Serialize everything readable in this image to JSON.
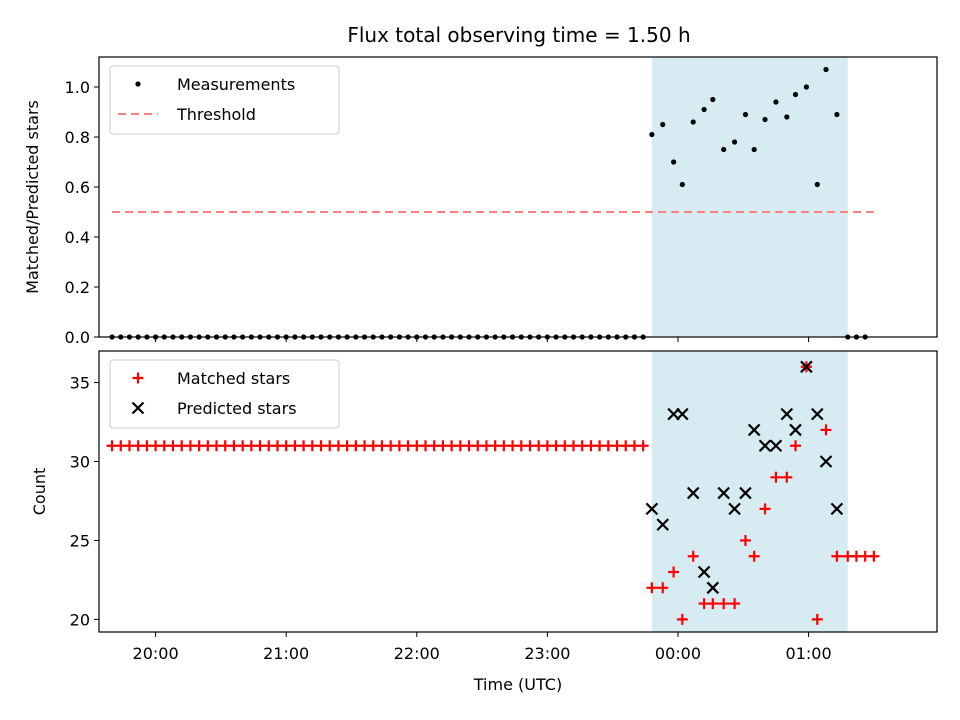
{
  "chart_data": {
    "title": "Flux total observing time = 1.50 h",
    "xlabel": "Time (UTC)",
    "xlim": [
      "19:34",
      "01:59"
    ],
    "xticks": [
      "20:00",
      "21:00",
      "22:00",
      "23:00",
      "00:00",
      "01:00"
    ],
    "highlight": {
      "start": "23:48",
      "end": "01:18",
      "color": "#add8e6"
    },
    "colors": {
      "measurement": "#000000",
      "threshold": "#ff7f7f",
      "matched": "#ff0000",
      "predicted": "#000000"
    },
    "times": [
      "19:40",
      "19:44",
      "19:48",
      "19:52",
      "19:56",
      "20:00",
      "20:04",
      "20:08",
      "20:12",
      "20:16",
      "20:20",
      "20:24",
      "20:28",
      "20:32",
      "20:36",
      "20:40",
      "20:44",
      "20:48",
      "20:52",
      "20:56",
      "21:00",
      "21:04",
      "21:08",
      "21:12",
      "21:16",
      "21:20",
      "21:24",
      "21:28",
      "21:32",
      "21:36",
      "21:40",
      "21:44",
      "21:48",
      "21:52",
      "21:56",
      "22:00",
      "22:04",
      "22:08",
      "22:12",
      "22:16",
      "22:20",
      "22:24",
      "22:28",
      "22:32",
      "22:36",
      "22:40",
      "22:44",
      "22:48",
      "22:52",
      "22:56",
      "23:00",
      "23:04",
      "23:08",
      "23:12",
      "23:16",
      "23:20",
      "23:24",
      "23:28",
      "23:32",
      "23:36",
      "23:40",
      "23:44",
      "23:48",
      "23:53",
      "23:58",
      "00:02",
      "00:07",
      "00:12",
      "00:16",
      "00:21",
      "00:26",
      "00:31",
      "00:35",
      "00:40",
      "00:45",
      "00:50",
      "00:54",
      "00:59",
      "01:04",
      "01:08",
      "01:13",
      "01:18",
      "01:22",
      "01:26",
      "01:30"
    ],
    "panels": [
      {
        "type": "scatter",
        "ylabel": "Matched/Predicted stars",
        "ylim": [
          0.0,
          1.12
        ],
        "yticks": [
          "0.0",
          "0.2",
          "0.4",
          "0.6",
          "0.8",
          "1.0"
        ],
        "legend_position": "upper-left",
        "series": [
          {
            "name": "Measurements",
            "marker": "dot",
            "values": [
              0,
              0,
              0,
              0,
              0,
              0,
              0,
              0,
              0,
              0,
              0,
              0,
              0,
              0,
              0,
              0,
              0,
              0,
              0,
              0,
              0,
              0,
              0,
              0,
              0,
              0,
              0,
              0,
              0,
              0,
              0,
              0,
              0,
              0,
              0,
              0,
              0,
              0,
              0,
              0,
              0,
              0,
              0,
              0,
              0,
              0,
              0,
              0,
              0,
              0,
              0,
              0,
              0,
              0,
              0,
              0,
              0,
              0,
              0,
              0,
              0,
              0,
              0.81,
              0.85,
              0.7,
              0.61,
              0.86,
              0.91,
              0.95,
              0.75,
              0.78,
              0.89,
              0.75,
              0.87,
              0.94,
              0.88,
              0.97,
              1.0,
              0.61,
              1.07,
              0.89,
              0,
              0,
              0,
              null
            ]
          },
          {
            "name": "Threshold",
            "style": "dashed",
            "value": 0.5,
            "x_range": [
              "19:40",
              "01:30"
            ]
          }
        ]
      },
      {
        "type": "scatter",
        "ylabel": "Count",
        "ylim": [
          19.2,
          37.0
        ],
        "yticks": [
          "20",
          "25",
          "30",
          "35"
        ],
        "legend_position": "upper-left",
        "series": [
          {
            "name": "Matched stars",
            "marker": "plus",
            "values": [
              31,
              31,
              31,
              31,
              31,
              31,
              31,
              31,
              31,
              31,
              31,
              31,
              31,
              31,
              31,
              31,
              31,
              31,
              31,
              31,
              31,
              31,
              31,
              31,
              31,
              31,
              31,
              31,
              31,
              31,
              31,
              31,
              31,
              31,
              31,
              31,
              31,
              31,
              31,
              31,
              31,
              31,
              31,
              31,
              31,
              31,
              31,
              31,
              31,
              31,
              31,
              31,
              31,
              31,
              31,
              31,
              31,
              31,
              31,
              31,
              31,
              31,
              22,
              22,
              23,
              20,
              24,
              21,
              21,
              21,
              21,
              25,
              24,
              27,
              29,
              29,
              31,
              36,
              20,
              32,
              24,
              24,
              24,
              24,
              24
            ]
          },
          {
            "name": "Predicted stars",
            "marker": "x",
            "values": [
              null,
              null,
              null,
              null,
              null,
              null,
              null,
              null,
              null,
              null,
              null,
              null,
              null,
              null,
              null,
              null,
              null,
              null,
              null,
              null,
              null,
              null,
              null,
              null,
              null,
              null,
              null,
              null,
              null,
              null,
              null,
              null,
              null,
              null,
              null,
              null,
              null,
              null,
              null,
              null,
              null,
              null,
              null,
              null,
              null,
              null,
              null,
              null,
              null,
              null,
              null,
              null,
              null,
              null,
              null,
              null,
              null,
              null,
              null,
              null,
              null,
              null,
              27,
              26,
              33,
              33,
              28,
              23,
              22,
              28,
              27,
              28,
              32,
              31,
              31,
              33,
              32,
              36,
              33,
              30,
              27,
              null,
              null,
              null,
              null
            ]
          }
        ]
      }
    ]
  }
}
